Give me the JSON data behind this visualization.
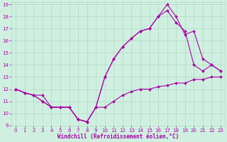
{
  "xlabel": "Windchill (Refroidissement éolien,°C)",
  "background_color": "#cff0e0",
  "grid_color": "#b0d8c4",
  "line_color": "#aa00aa",
  "xlim": [
    -0.5,
    23.5
  ],
  "ylim": [
    9,
    19.2
  ],
  "xticks": [
    0,
    1,
    2,
    3,
    4,
    5,
    6,
    7,
    8,
    9,
    10,
    11,
    12,
    13,
    14,
    15,
    16,
    17,
    18,
    19,
    20,
    21,
    22,
    23
  ],
  "yticks": [
    9,
    10,
    11,
    12,
    13,
    14,
    15,
    16,
    17,
    18,
    19
  ],
  "line1_x": [
    0,
    1,
    2,
    3,
    4,
    5,
    6,
    7,
    8,
    9,
    10,
    11,
    12,
    13,
    14,
    15,
    16,
    17,
    18,
    19,
    20,
    21,
    22,
    23
  ],
  "line1_y": [
    12,
    11.7,
    11.5,
    11.5,
    10.5,
    10.5,
    10.5,
    9.5,
    9.3,
    10.5,
    10.5,
    11.0,
    11.5,
    11.8,
    12.0,
    12.0,
    12.2,
    12.3,
    12.5,
    12.5,
    12.8,
    12.8,
    13.0,
    13.0
  ],
  "line2_x": [
    0,
    1,
    2,
    3,
    4,
    5,
    6,
    7,
    8,
    9,
    10,
    11,
    12,
    13,
    14,
    15,
    16,
    17,
    18,
    19,
    20,
    21,
    22,
    23
  ],
  "line2_y": [
    12,
    11.7,
    11.5,
    11.0,
    10.5,
    10.5,
    10.5,
    9.5,
    9.3,
    10.5,
    13.0,
    14.5,
    15.5,
    16.2,
    16.8,
    17.0,
    18.0,
    18.5,
    17.5,
    16.8,
    14.0,
    13.5,
    14.0,
    13.5
  ],
  "line3_x": [
    0,
    1,
    2,
    3,
    4,
    5,
    6,
    7,
    8,
    9,
    10,
    11,
    12,
    13,
    14,
    15,
    16,
    17,
    18,
    19,
    20,
    21,
    22,
    23
  ],
  "line3_y": [
    12,
    11.7,
    11.5,
    11.0,
    10.5,
    10.5,
    10.5,
    9.5,
    9.3,
    10.5,
    13.0,
    14.5,
    15.5,
    16.2,
    16.8,
    17.0,
    18.0,
    19.0,
    18.0,
    16.5,
    16.8,
    14.5,
    14.0,
    13.5
  ],
  "xlabel_fontsize": 5.5,
  "tick_fontsize": 5,
  "marker_size": 2,
  "line_width": 0.8
}
